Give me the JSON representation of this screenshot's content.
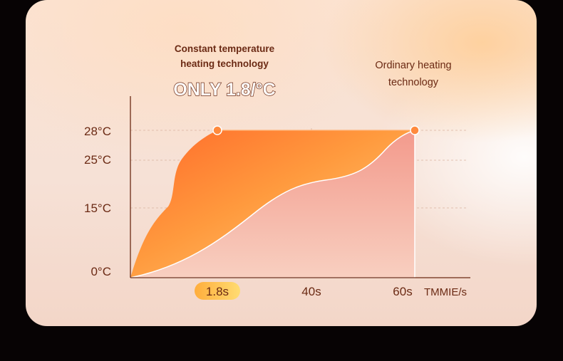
{
  "chart_data": {
    "type": "area",
    "annotations": {
      "constant_line1": "Constant temperature",
      "constant_line2": "heating technology",
      "highlight": "ONLY 1.8/°C",
      "ordinary_line1": "Ordinary heating",
      "ordinary_line2": "technology"
    },
    "y_ticks": [
      {
        "value": 0,
        "label": "0°C"
      },
      {
        "value": 15,
        "label": "15°C"
      },
      {
        "value": 25,
        "label": "25°C"
      },
      {
        "value": 28,
        "label": "28°C"
      }
    ],
    "x_ticks": [
      {
        "value": 1.8,
        "label": "1.8s",
        "highlighted": true
      },
      {
        "value": 40,
        "label": "40s"
      },
      {
        "value": 60,
        "label": "60s"
      }
    ],
    "xlabel": "TMMIE/s",
    "ylim": [
      0,
      28
    ],
    "xlim": [
      0,
      60
    ],
    "series": [
      {
        "name": "Constant temperature heating technology",
        "peak_x": 1.8,
        "peak_y": 28,
        "color": "#ff7a30"
      },
      {
        "name": "Ordinary heating technology",
        "peak_x": 60,
        "peak_y": 28,
        "color": "#f0a090"
      }
    ],
    "colors": {
      "axis": "#6b2a14",
      "grid": "#d9b3a0",
      "marker": "#ff8a3d",
      "badge_start": "#ffb347",
      "badge_end": "#ffd66b"
    }
  }
}
